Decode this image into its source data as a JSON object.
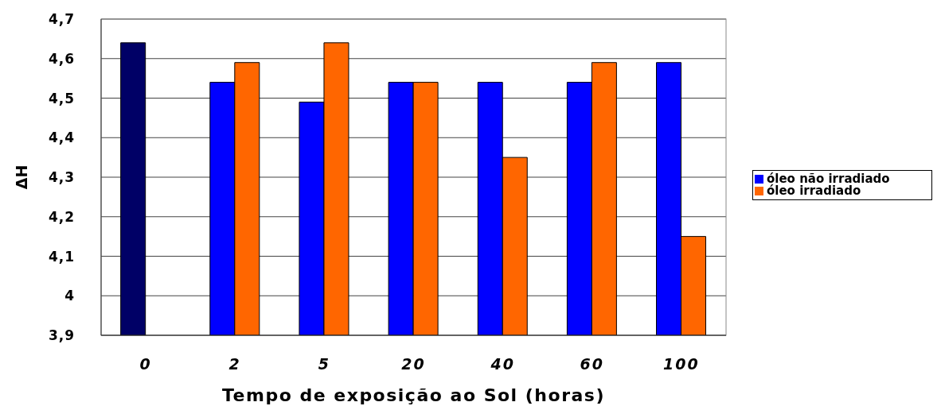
{
  "chart_data": {
    "type": "bar",
    "xlabel": "Tempo de exposição ao Sol (horas)",
    "ylabel": "ΔH",
    "categories": [
      "0",
      "2",
      "5",
      "20",
      "40",
      "60",
      "100"
    ],
    "series": [
      {
        "name": "óleo não irradiado",
        "color": "#0000ff",
        "colors": [
          "#000066",
          "#0000ff",
          "#0000ff",
          "#0000ff",
          "#0000ff",
          "#0000ff",
          "#0000ff"
        ],
        "values": [
          4.64,
          4.54,
          4.49,
          4.54,
          4.54,
          4.54,
          4.59
        ]
      },
      {
        "name": "óleo irradiado",
        "color": "#ff6600",
        "values": [
          null,
          4.59,
          4.64,
          4.54,
          4.35,
          4.59,
          4.15
        ]
      }
    ],
    "ylim": [
      3.9,
      4.7
    ],
    "yticks": [
      {
        "value": 3.9,
        "label": "3,9"
      },
      4,
      {
        "value": 4.1,
        "label": "4,1"
      },
      {
        "value": 4.2,
        "label": "4,2"
      },
      {
        "value": 4.3,
        "label": "4,3"
      },
      {
        "value": 4.4,
        "label": "4,4"
      },
      {
        "value": 4.5,
        "label": "4,5"
      },
      {
        "value": 4.6,
        "label": "4,6"
      },
      {
        "value": 4.7,
        "label": "4,7"
      }
    ],
    "grid": "y",
    "legend": "right"
  }
}
